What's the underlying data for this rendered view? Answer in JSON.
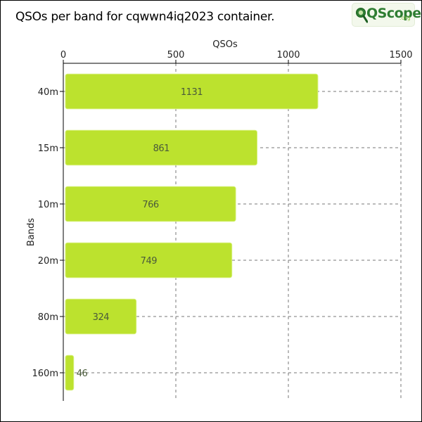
{
  "title": "QSOs per band for cqwwn4iq2023 container.",
  "logo": {
    "text": "QScope",
    "suffix": ".org"
  },
  "colors": {
    "bar_fill": "#bce22e",
    "bar_stroke": "#d6f07a",
    "value_label": "#4a5a3a",
    "grid": "#777777",
    "axis": "#000000"
  },
  "chart_data": {
    "type": "bar",
    "orientation": "horizontal",
    "categories": [
      "40m",
      "15m",
      "10m",
      "20m",
      "80m",
      "160m"
    ],
    "values": [
      1131,
      861,
      766,
      749,
      324,
      46
    ],
    "xlabel": "QSOs",
    "ylabel": "Bands",
    "xlim": [
      0,
      1500
    ],
    "xticks": [
      0,
      500,
      1000,
      1500
    ],
    "x_axis_position": "top",
    "grid": true,
    "legend": "none"
  }
}
